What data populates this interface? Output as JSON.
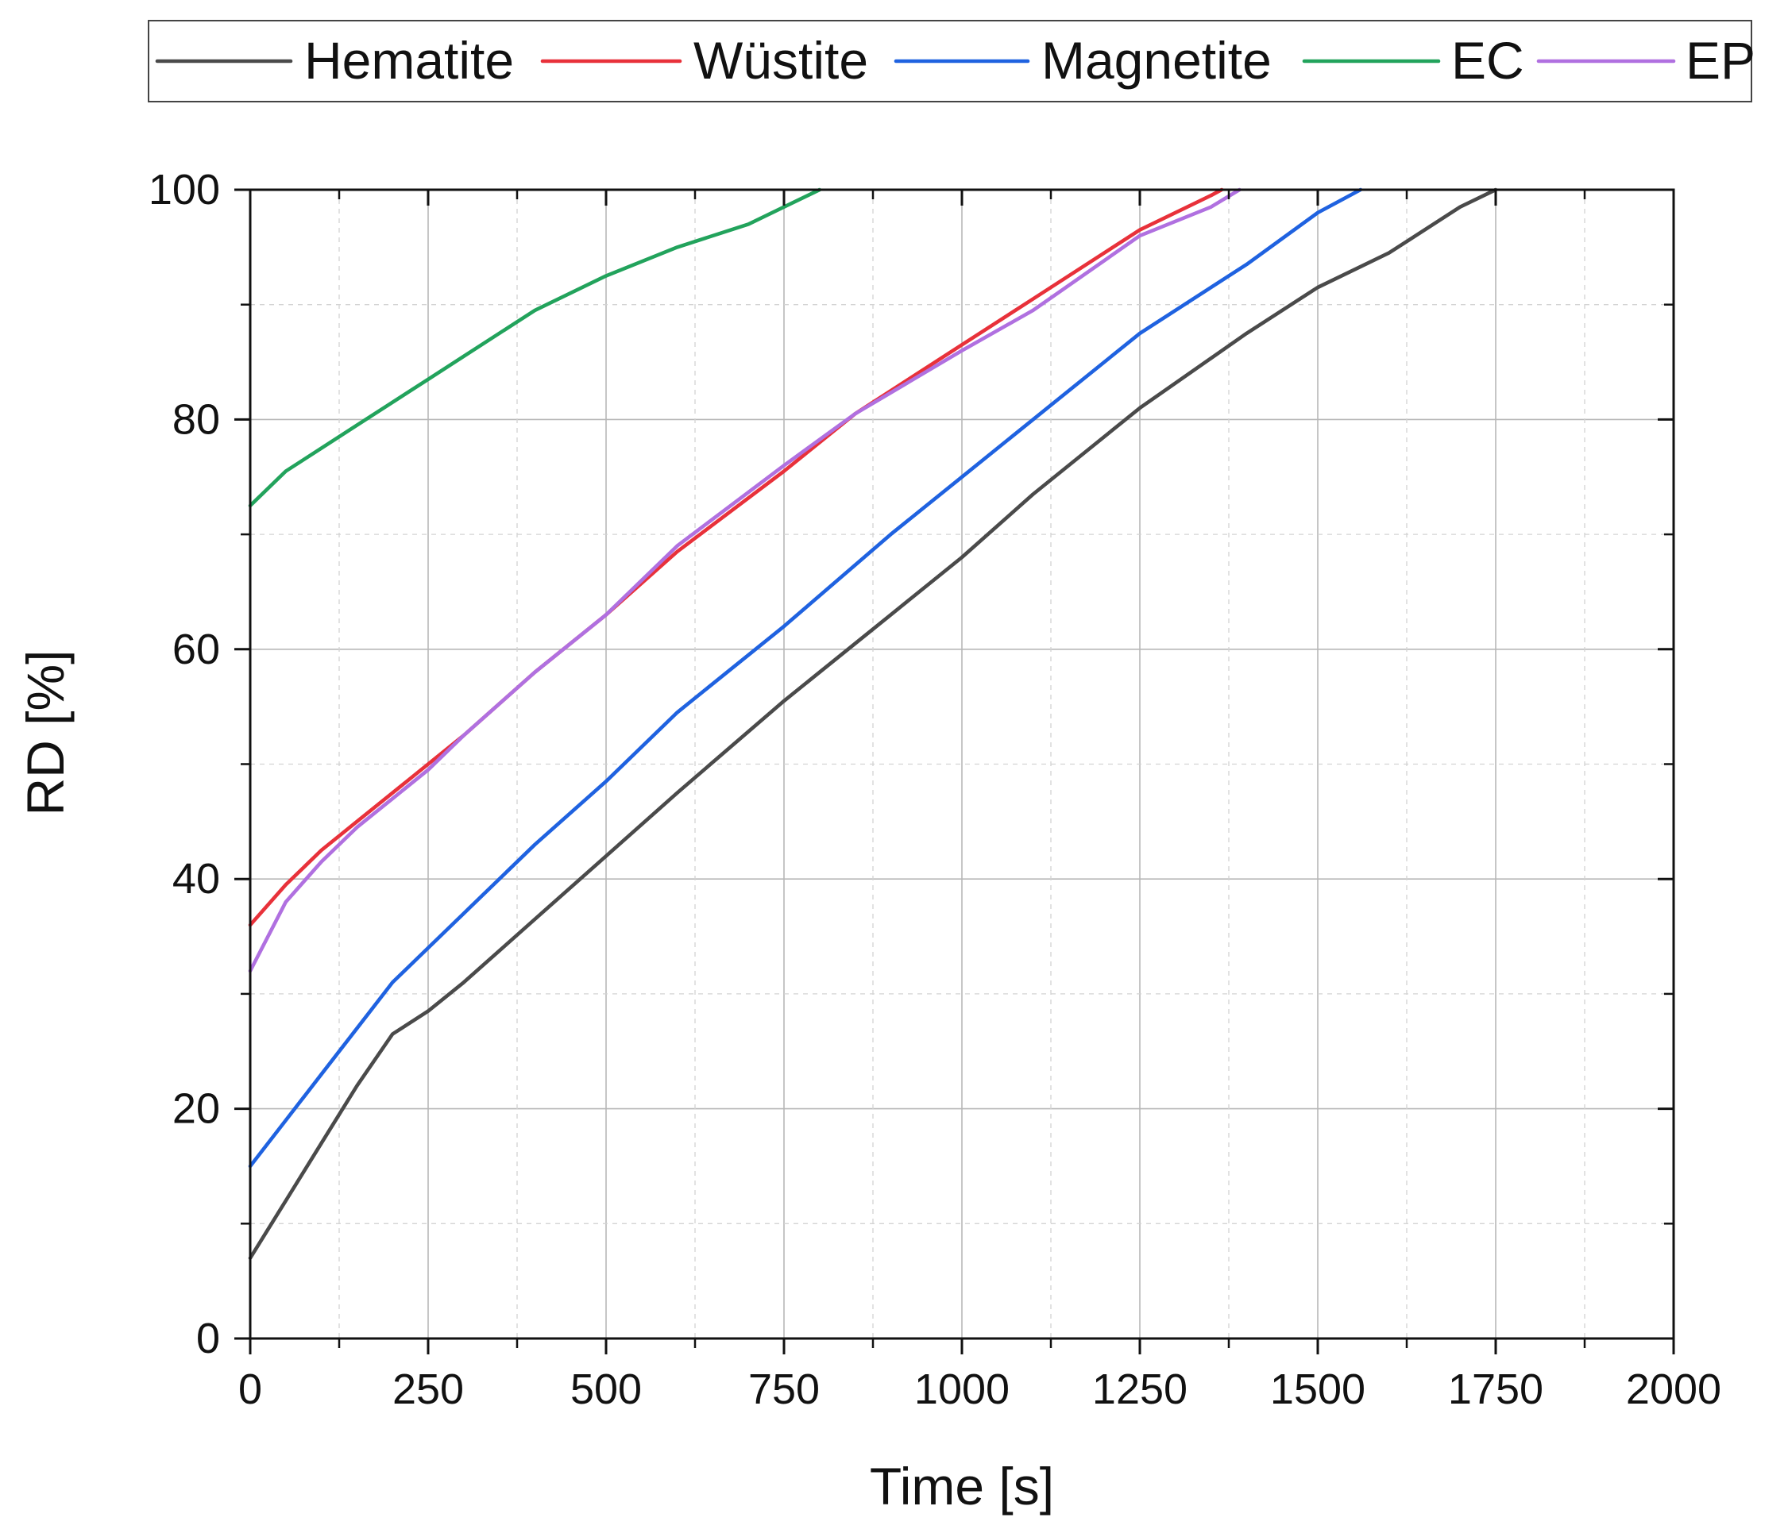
{
  "chart_data": {
    "type": "line",
    "title": "",
    "xlabel": "Time [s]",
    "ylabel": "RD [%]",
    "xlim": [
      0,
      2000
    ],
    "ylim": [
      0,
      100
    ],
    "xticks": [
      0,
      250,
      500,
      750,
      1000,
      1250,
      1500,
      1750,
      2000
    ],
    "xtick_labels": [
      "0",
      "250",
      "500",
      "750",
      "1000",
      "1250",
      "1500",
      "1750",
      "2000"
    ],
    "yticks": [
      0,
      20,
      40,
      60,
      80,
      100
    ],
    "ytick_labels": [
      "0",
      "20",
      "40",
      "60",
      "80",
      "100"
    ],
    "grid": true,
    "legend_position": "top",
    "series": [
      {
        "name": "Hematite",
        "color": "#4a4a4a",
        "x": [
          0,
          50,
          100,
          150,
          200,
          250,
          300,
          400,
          500,
          600,
          750,
          900,
          1000,
          1100,
          1250,
          1400,
          1500,
          1600,
          1700,
          1750
        ],
        "y": [
          7,
          12,
          17,
          22,
          26.5,
          28.5,
          31,
          36.5,
          42,
          47.5,
          55.5,
          63,
          68,
          73.5,
          81,
          87.5,
          91.5,
          94.5,
          98.5,
          100
        ]
      },
      {
        "name": "Wüstite",
        "color": "#e8313a",
        "x": [
          0,
          50,
          100,
          150,
          200,
          250,
          300,
          400,
          500,
          600,
          750,
          850,
          1000,
          1100,
          1250,
          1350,
          1365
        ],
        "y": [
          36,
          39.5,
          42.5,
          45,
          47.5,
          50,
          52.5,
          58,
          63,
          68.5,
          75.5,
          80.5,
          86.5,
          90.5,
          96.5,
          99.5,
          100
        ]
      },
      {
        "name": "Magnetite",
        "color": "#1f62e0",
        "x": [
          0,
          50,
          100,
          150,
          200,
          250,
          300,
          400,
          500,
          600,
          750,
          900,
          1000,
          1100,
          1250,
          1400,
          1500,
          1560
        ],
        "y": [
          15,
          19,
          23,
          27,
          31,
          34,
          37,
          43,
          48.5,
          54.5,
          62,
          70,
          75,
          80,
          87.5,
          93.5,
          98,
          100
        ]
      },
      {
        "name": "EC",
        "color": "#22a35c",
        "x": [
          0,
          50,
          100,
          150,
          200,
          250,
          300,
          400,
          500,
          600,
          700,
          750,
          800
        ],
        "y": [
          72.5,
          75.5,
          77.5,
          79.5,
          81.5,
          83.5,
          85.5,
          89.5,
          92.5,
          95,
          97,
          98.5,
          100
        ]
      },
      {
        "name": "EP",
        "color": "#b070e0",
        "x": [
          0,
          50,
          100,
          150,
          200,
          250,
          300,
          400,
          500,
          600,
          750,
          850,
          1000,
          1100,
          1250,
          1350,
          1390
        ],
        "y": [
          32,
          38,
          41.5,
          44.5,
          47,
          49.5,
          52.5,
          58,
          63,
          69,
          76,
          80.5,
          86,
          89.5,
          96,
          98.5,
          100
        ]
      }
    ]
  }
}
